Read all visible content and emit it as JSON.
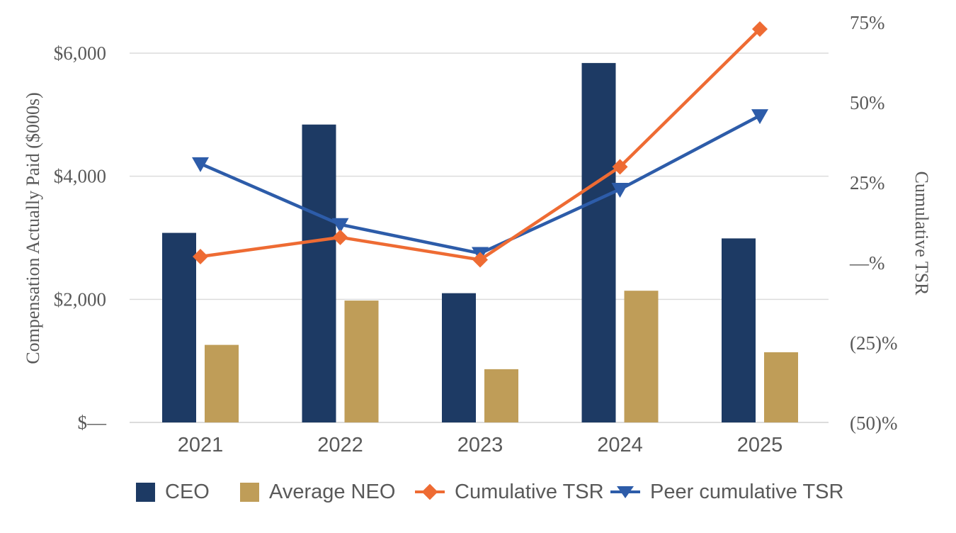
{
  "chart_data": {
    "type": "combo-bar-line",
    "categories": [
      "2021",
      "2022",
      "2023",
      "2024",
      "2025"
    ],
    "bar_series": [
      {
        "name": "CEO",
        "color": "#1D3A64",
        "axis": "left",
        "values": [
          3080,
          4840,
          2100,
          5840,
          2990
        ]
      },
      {
        "name": "Average NEO",
        "color": "#BF9D58",
        "axis": "left",
        "values": [
          1260,
          1980,
          865,
          2140,
          1140
        ]
      }
    ],
    "line_series": [
      {
        "name": "Cumulative TSR",
        "color": "#EE6B33",
        "marker": "diamond",
        "axis": "right",
        "values_pct": [
          2,
          8,
          1,
          30,
          73
        ]
      },
      {
        "name": "Peer cumulative TSR",
        "color": "#2D5CA9",
        "marker": "triangle-down",
        "axis": "right",
        "values_pct": [
          31,
          12,
          3,
          23,
          46
        ]
      }
    ],
    "left_axis": {
      "title": "Compensation Actually Paid ($000s)",
      "range": [
        0,
        6000
      ],
      "ticks": [
        {
          "label": "$—",
          "value": 0
        },
        {
          "label": "$2,000",
          "value": 2000
        },
        {
          "label": "$4,000",
          "value": 4000
        },
        {
          "label": "$6,000",
          "value": 6000
        }
      ]
    },
    "right_axis": {
      "title": "Cumulative TSR",
      "range_pct": [
        -50,
        75
      ],
      "ticks": [
        {
          "label": "(50)%",
          "value": -50
        },
        {
          "label": "(25)%",
          "value": -25
        },
        {
          "label": "—%",
          "value": 0
        },
        {
          "label": "25%",
          "value": 25
        },
        {
          "label": "50%",
          "value": 50
        },
        {
          "label": "75%",
          "value": 75
        }
      ]
    },
    "legend": {
      "position": "bottom",
      "items": [
        "CEO",
        "Average NEO",
        "Cumulative TSR",
        "Peer cumulative TSR"
      ]
    },
    "grid": {
      "show": true,
      "color": "#DCDCDC",
      "lines_at_values": [
        0,
        2000,
        4000,
        6000
      ]
    },
    "text_color": "#595959"
  }
}
